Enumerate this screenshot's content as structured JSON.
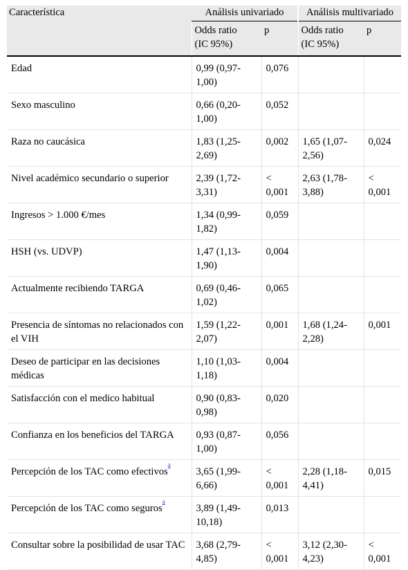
{
  "header": {
    "caracteristica": "Característica",
    "univariado": "Análisis univariado",
    "multivariado": "Análisis multivariado",
    "odds_ratio": "Odds ratio",
    "ic": "(IC 95%)",
    "p": "p"
  },
  "rows": [
    {
      "label": "Edad",
      "sup": "",
      "uni_or": "0,99 (0,97-1,00)",
      "uni_p": "0,076",
      "multi_or": "",
      "multi_p": ""
    },
    {
      "label": "Sexo masculino",
      "sup": "",
      "uni_or": "0,66 (0,20-1,00)",
      "uni_p": "0,052",
      "multi_or": "",
      "multi_p": ""
    },
    {
      "label": "Raza no caucásica",
      "sup": "",
      "uni_or": "1,83 (1,25-2,69)",
      "uni_p": "0,002",
      "multi_or": "1,65 (1,07-2,56)",
      "multi_p": "0,024"
    },
    {
      "label": "Nivel académico secundario o superior",
      "sup": "",
      "uni_or": "2,39 (1,72-3,31)",
      "uni_p": "< 0,001",
      "multi_or": "2,63 (1,78-3,88)",
      "multi_p": "< 0,001"
    },
    {
      "label": "Ingresos > 1.000 €/mes",
      "sup": "",
      "uni_or": "1,34 (0,99-1,82)",
      "uni_p": "0,059",
      "multi_or": "",
      "multi_p": ""
    },
    {
      "label": "HSH (vs. UDVP)",
      "sup": "",
      "uni_or": "1,47 (1,13-1,90)",
      "uni_p": "0,004",
      "multi_or": "",
      "multi_p": ""
    },
    {
      "label": "Actualmente recibiendo TARGA",
      "sup": "",
      "uni_or": "0,69 (0,46-1,02)",
      "uni_p": "0,065",
      "multi_or": "",
      "multi_p": ""
    },
    {
      "label": "Presencia de síntomas no relacionados con el VIH",
      "sup": "",
      "uni_or": "1,59 (1,22-2,07)",
      "uni_p": "0,001",
      "multi_or": "1,68 (1,24-2,28)",
      "multi_p": "0,001"
    },
    {
      "label": "Deseo de participar en las decisiones médicas",
      "sup": "",
      "uni_or": "1,10 (1,03-1,18)",
      "uni_p": "0,004",
      "multi_or": "",
      "multi_p": ""
    },
    {
      "label": "Satisfacción con el medico habitual",
      "sup": "",
      "uni_or": "0,90 (0,83-0,98)",
      "uni_p": "0,020",
      "multi_or": "",
      "multi_p": ""
    },
    {
      "label": "Confianza en los beneficios del TARGA",
      "sup": "",
      "uni_or": "0,93 (0,87-1,00)",
      "uni_p": "0,056",
      "multi_or": "",
      "multi_p": ""
    },
    {
      "label": "Percepción de los TAC como efectivos",
      "sup": "a",
      "uni_or": "3,65 (1,99-6,66)",
      "uni_p": "< 0,001",
      "multi_or": "2,28 (1,18-4,41)",
      "multi_p": "0,015"
    },
    {
      "label": "Percepción de los TAC como seguros",
      "sup": "a",
      "uni_or": "3,89 (1,49-10,18)",
      "uni_p": "0,013",
      "multi_or": "",
      "multi_p": ""
    },
    {
      "label": "Consultar sobre la posibilidad de usar TAC",
      "sup": "",
      "uni_or": "3,68 (2,79-4,85)",
      "uni_p": "< 0,001",
      "multi_or": "3,12 (2,30-4,23)",
      "multi_p": "< 0,001"
    }
  ]
}
